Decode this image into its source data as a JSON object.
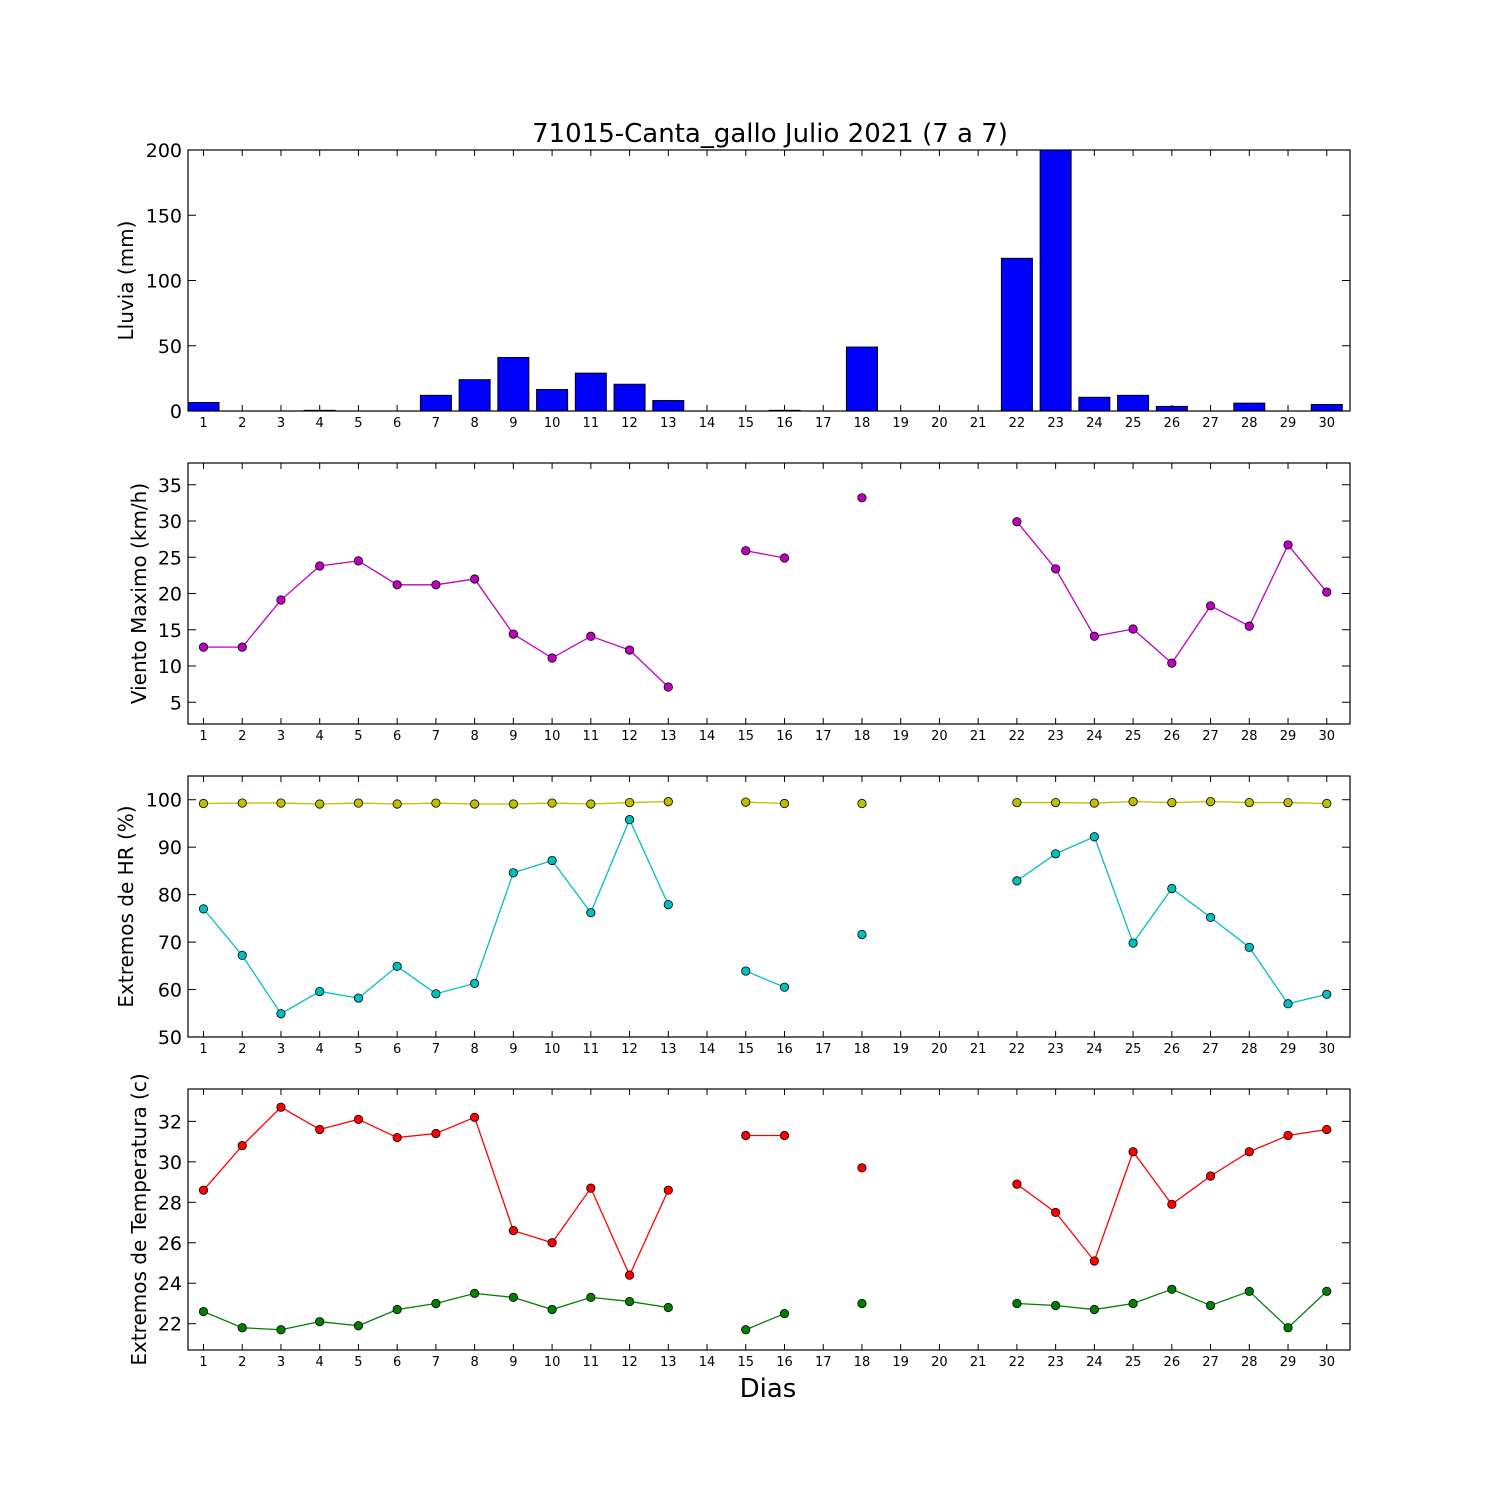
{
  "chart_data": [
    {
      "type": "bar",
      "title": "71015-Canta_gallo Julio 2021  (7 a 7)",
      "ylabel": "Lluvia (mm)",
      "xlabel": "",
      "x": [
        1,
        2,
        3,
        4,
        5,
        6,
        7,
        8,
        9,
        10,
        11,
        12,
        13,
        14,
        15,
        16,
        17,
        18,
        19,
        20,
        21,
        22,
        23,
        24,
        25,
        26,
        27,
        28,
        29,
        30
      ],
      "values": [
        6.5,
        0,
        0,
        0.5,
        0,
        0,
        12,
        24,
        41,
        16.5,
        29,
        20.5,
        8,
        0,
        0,
        0.5,
        0,
        49,
        0,
        0,
        0,
        117,
        200,
        10.5,
        12,
        3.5,
        0,
        6,
        0,
        5
      ],
      "ylim": [
        0,
        200
      ],
      "yticks": [
        0,
        50,
        100,
        150,
        200
      ],
      "color": "#0000ff"
    },
    {
      "type": "line",
      "title": "",
      "ylabel": "Viento Maximo (km/h)",
      "xlabel": "",
      "x": [
        1,
        2,
        3,
        4,
        5,
        6,
        7,
        8,
        9,
        10,
        11,
        12,
        13,
        14,
        15,
        16,
        17,
        18,
        19,
        20,
        21,
        22,
        23,
        24,
        25,
        26,
        27,
        28,
        29,
        30
      ],
      "series": [
        {
          "color": "#bf00bf",
          "values": [
            12.6,
            12.6,
            19.1,
            23.8,
            24.5,
            21.2,
            21.2,
            22,
            14.4,
            11.1,
            14.1,
            12.2,
            7.1,
            null,
            25.9,
            24.9,
            null,
            33.2,
            null,
            null,
            null,
            29.9,
            23.4,
            14.1,
            15.1,
            10.4,
            18.3,
            15.5,
            26.7,
            20.2
          ]
        }
      ],
      "ylim": [
        2,
        38
      ],
      "yticks": [
        5,
        10,
        15,
        20,
        25,
        30,
        35
      ]
    },
    {
      "type": "line",
      "title": "",
      "ylabel": "Extremos de HR (%)",
      "xlabel": "",
      "x": [
        1,
        2,
        3,
        4,
        5,
        6,
        7,
        8,
        9,
        10,
        11,
        12,
        13,
        14,
        15,
        16,
        17,
        18,
        19,
        20,
        21,
        22,
        23,
        24,
        25,
        26,
        27,
        28,
        29,
        30
      ],
      "series": [
        {
          "color": "#bfbf00",
          "values": [
            99.2,
            99.3,
            99.3,
            99.1,
            99.3,
            99.1,
            99.3,
            99.1,
            99.1,
            99.3,
            99.1,
            99.4,
            99.6,
            null,
            99.5,
            99.2,
            null,
            99.2,
            null,
            null,
            null,
            99.4,
            99.4,
            99.3,
            99.6,
            99.4,
            99.6,
            99.4,
            99.4,
            99.2
          ]
        },
        {
          "color": "#00bfbf",
          "values": [
            77,
            67.2,
            54.9,
            59.6,
            58.2,
            64.9,
            59.1,
            61.3,
            84.6,
            87.2,
            76.2,
            95.8,
            77.9,
            null,
            63.9,
            60.5,
            null,
            71.6,
            null,
            null,
            null,
            82.9,
            88.6,
            92.2,
            69.8,
            81.3,
            75.2,
            68.9,
            57,
            59
          ]
        }
      ],
      "ylim": [
        50,
        105
      ],
      "yticks": [
        50,
        60,
        70,
        80,
        90,
        100
      ]
    },
    {
      "type": "line",
      "title": "",
      "ylabel": "Extremos de Temperatura (c)",
      "xlabel": "Dias",
      "x": [
        1,
        2,
        3,
        4,
        5,
        6,
        7,
        8,
        9,
        10,
        11,
        12,
        13,
        14,
        15,
        16,
        17,
        18,
        19,
        20,
        21,
        22,
        23,
        24,
        25,
        26,
        27,
        28,
        29,
        30
      ],
      "series": [
        {
          "color": "#ff0000",
          "values": [
            28.6,
            30.8,
            32.7,
            31.6,
            32.1,
            31.2,
            31.4,
            32.2,
            26.6,
            26,
            28.7,
            24.4,
            28.6,
            null,
            31.3,
            31.3,
            null,
            29.7,
            null,
            null,
            null,
            28.9,
            27.5,
            25.1,
            30.5,
            27.9,
            29.3,
            30.5,
            31.3,
            31.6
          ]
        },
        {
          "color": "#007f00",
          "values": [
            22.6,
            21.8,
            21.7,
            22.1,
            21.9,
            22.7,
            23,
            23.5,
            23.3,
            22.7,
            23.3,
            23.1,
            22.8,
            null,
            21.7,
            22.5,
            null,
            23,
            null,
            null,
            null,
            23,
            22.9,
            22.7,
            23,
            23.7,
            22.9,
            23.6,
            21.8,
            23.6
          ]
        }
      ],
      "ylim": [
        20.7,
        33.6
      ],
      "yticks": [
        22,
        24,
        26,
        28,
        30,
        32
      ]
    }
  ]
}
